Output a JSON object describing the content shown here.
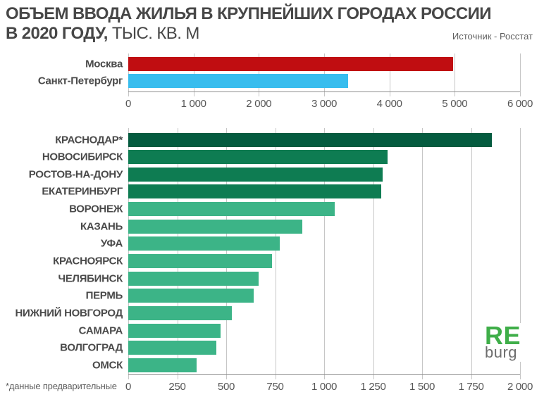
{
  "header": {
    "title_line1": "ОБЪЕМ ВВОДА ЖИЛЬЯ В КРУПНЕЙШИХ ГОРОДАХ РОССИИ",
    "title_line2_bold": "В 2020 ГОДУ,",
    "title_line2_rest": " ТЫС. КВ. М",
    "source": "Источник - Росстат"
  },
  "footnote": "*данные предварительные",
  "logo": {
    "top": "RE",
    "bottom": "burg",
    "color": "#3fae49"
  },
  "colors": {
    "moscow_red": "#c00d11",
    "spb_blue": "#38bdee",
    "green_dark": "#045b3f",
    "green_medium": "#0e7c52",
    "green_light": "#3cb487",
    "gridline": "#c6c6c6",
    "axis_line": "#8f8f8f",
    "title_text": "#474747",
    "label_text": "#4a4a4a",
    "tick_text": "#565656"
  },
  "chart_data": [
    {
      "type": "bar",
      "orientation": "horizontal",
      "title": "Объем ввода жилья: Москва и Санкт-Петербург, тыс. кв. м",
      "categories": [
        "Москва",
        "Санкт-Петербург"
      ],
      "values": [
        4980,
        3370
      ],
      "bar_colors": [
        "#c00d11",
        "#38bdee"
      ],
      "xlim": [
        0,
        6000
      ],
      "xtick": 1000,
      "tick_labels": [
        "0",
        "1 000",
        "2 000",
        "3 000",
        "4 000",
        "5 000",
        "6 000"
      ],
      "grid": true,
      "legend": "none",
      "unit": "тыс. кв. м"
    },
    {
      "type": "bar",
      "orientation": "horizontal",
      "title": "Объем ввода жилья: крупнейшие города, тыс. кв. м",
      "categories": [
        "КРАСНОДАР*",
        "НОВОСИБИРСК",
        "РОСТОВ-НА-ДОНУ",
        "ЕКАТЕРИНБУРГ",
        "ВОРОНЕЖ",
        "КАЗАНЬ",
        "УФА",
        "КРАСНОЯРСК",
        "ЧЕЛЯБИНСК",
        "ПЕРМЬ",
        "НИЖНИЙ НОВГОРОД",
        "САМАРА",
        "ВОЛГОГРАД",
        "ОМСК"
      ],
      "values": [
        1855,
        1325,
        1300,
        1290,
        1055,
        890,
        775,
        735,
        665,
        640,
        530,
        470,
        450,
        350
      ],
      "bar_colors": [
        "#045b3f",
        "#0e7c52",
        "#0e7c52",
        "#0e7c52",
        "#3cb487",
        "#3cb487",
        "#3cb487",
        "#3cb487",
        "#3cb487",
        "#3cb487",
        "#3cb487",
        "#3cb487",
        "#3cb487",
        "#3cb487"
      ],
      "xlim": [
        0,
        2000
      ],
      "xtick": 250,
      "tick_labels": [
        "0",
        "250",
        "500",
        "750",
        "1 000",
        "1 250",
        "1 500",
        "1 750",
        "2 000"
      ],
      "grid": true,
      "legend": "none",
      "unit": "тыс. кв. м"
    }
  ]
}
